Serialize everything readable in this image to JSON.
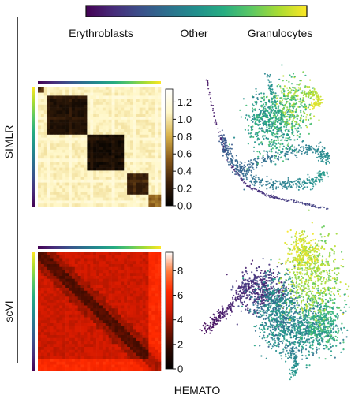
{
  "figure": {
    "top_colorbar": {
      "labels": [
        "Erythroblasts",
        "Other",
        "Granulocytes"
      ],
      "colormap": "viridis"
    },
    "row_labels": [
      "SIMLR",
      "scVI"
    ],
    "dataset_label": "HEMATO"
  },
  "colors": {
    "viridis": [
      "#440154",
      "#472c7a",
      "#3b518b",
      "#2c718e",
      "#21908d",
      "#27ad81",
      "#5cc863",
      "#aadc32",
      "#fde725"
    ],
    "heatmap_simlr": [
      "#000000",
      "#3a1f0a",
      "#8a5a1a",
      "#d9b24a",
      "#fff7c8",
      "#ffffff"
    ],
    "heatmap_scvi": [
      "#000000",
      "#2a0800",
      "#7a1200",
      "#d61a00",
      "#ff2a00",
      "#ff7a3a",
      "#ffffff"
    ]
  },
  "chart_data": [
    {
      "type": "heatmap",
      "name": "SIMLR similarity matrix",
      "colorbar_ticks": [
        "0.0",
        "0.2",
        "0.4",
        "0.6",
        "0.8",
        "1.0",
        "1.2"
      ],
      "colorbar_values": [
        0.0,
        0.2,
        0.4,
        0.6,
        0.8,
        1.0,
        1.2
      ],
      "vmin": 0.0,
      "vmax": 1.35,
      "blocks": [
        {
          "from": 0.0,
          "to": 0.06,
          "value": 0.35
        },
        {
          "from": 0.08,
          "to": 0.4,
          "value": 0.15
        },
        {
          "from": 0.4,
          "to": 0.7,
          "value": 0.1
        },
        {
          "from": 0.72,
          "to": 0.9,
          "value": 0.25
        },
        {
          "from": 0.9,
          "to": 1.0,
          "value": 0.55
        }
      ],
      "background_value": 1.05
    },
    {
      "type": "scatter",
      "name": "SIMLR embedding colored by pseudotime"
    },
    {
      "type": "heatmap",
      "name": "scVI similarity matrix",
      "colorbar_ticks": [
        "0",
        "2",
        "4",
        "6",
        "8"
      ],
      "colorbar_values": [
        0,
        2,
        4,
        6,
        8
      ],
      "vmin": 0,
      "vmax": 9.5,
      "background_value": 4.6
    },
    {
      "type": "scatter",
      "name": "scVI embedding colored by pseudotime"
    }
  ]
}
